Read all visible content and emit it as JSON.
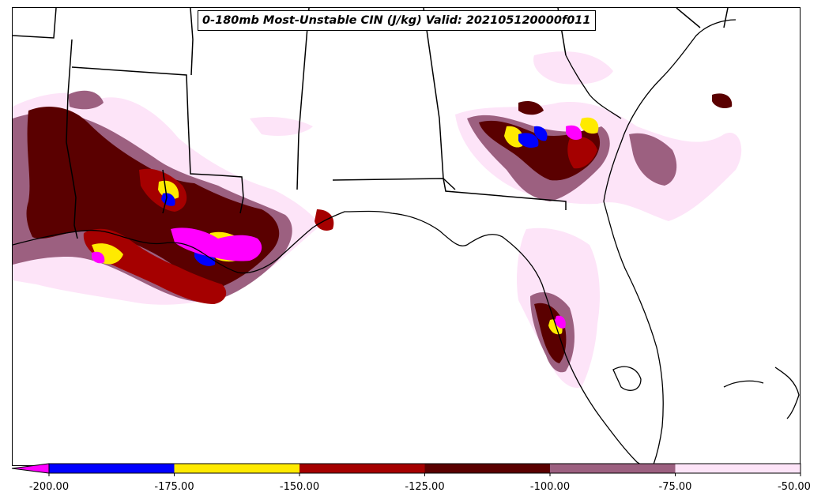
{
  "title": "0-180mb Most-Unstable CIN (J/kg) Valid: 202105120000f011",
  "colorbar": {
    "bins": [
      {
        "from": -200,
        "to": -175,
        "color": "#0000ff"
      },
      {
        "from": -175,
        "to": -150,
        "color": "#ffea00"
      },
      {
        "from": -150,
        "to": -125,
        "color": "#a50000"
      },
      {
        "from": -125,
        "to": -100,
        "color": "#5a0000"
      },
      {
        "from": -100,
        "to": -75,
        "color": "#9c6080"
      },
      {
        "from": -75,
        "to": -50,
        "color": "#fde4f8"
      }
    ],
    "extend_low_color": "#ff00ff",
    "tick_labels": [
      "-200.00",
      "-175.00",
      "-150.00",
      "-125.00",
      "-100.00",
      "-75.00",
      "-50.00"
    ]
  },
  "legend": {
    "cin_levels": [
      "-200 to -175",
      "-175 to -150",
      "-150 to -125",
      "-125 to -100",
      "-100 to -75",
      "-75 to -50",
      "below -200"
    ]
  }
}
